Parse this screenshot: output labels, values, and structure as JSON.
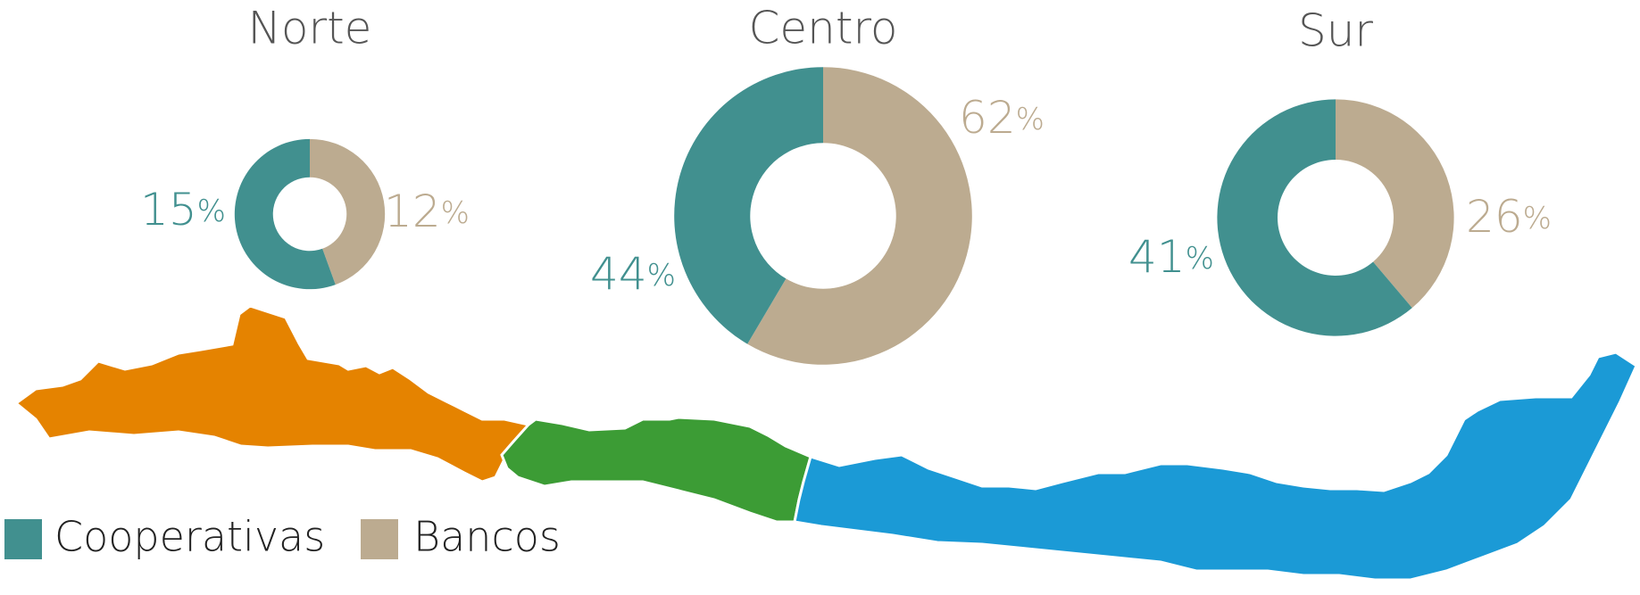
{
  "chart_data": [
    {
      "type": "pie",
      "title": "Norte",
      "categories": [
        "Cooperativas",
        "Bancos"
      ],
      "values": [
        15,
        12
      ],
      "value_labels": [
        "15%",
        "12%"
      ],
      "colors": [
        "#41908f",
        "#bcab90"
      ]
    },
    {
      "type": "pie",
      "title": "Centro",
      "categories": [
        "Cooperativas",
        "Bancos"
      ],
      "values": [
        44,
        62
      ],
      "value_labels": [
        "44%",
        "62%"
      ],
      "colors": [
        "#41908f",
        "#bcab90"
      ]
    },
    {
      "type": "pie",
      "title": "Sur",
      "categories": [
        "Cooperativas",
        "Bancos"
      ],
      "values": [
        41,
        26
      ],
      "value_labels": [
        "41%",
        "26%"
      ],
      "colors": [
        "#41908f",
        "#bcab90"
      ]
    }
  ]
}
